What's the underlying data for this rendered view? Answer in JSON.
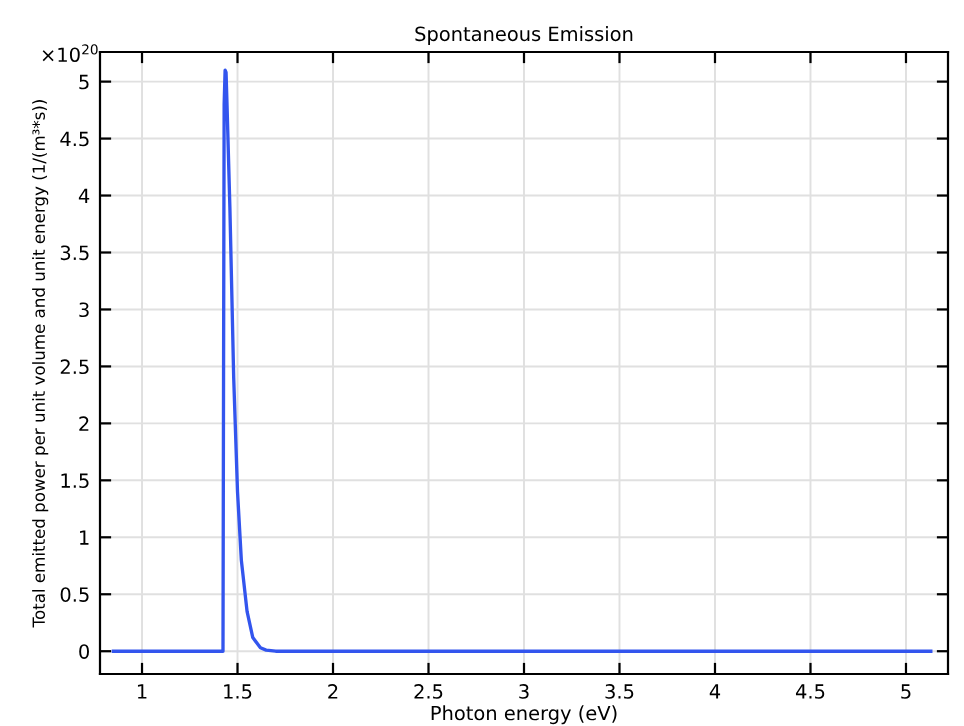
{
  "chart_data": {
    "type": "line",
    "title": "Spontaneous Emission",
    "xlabel": "Photon energy (eV)",
    "ylabel": "Total emitted power per unit volume and unit energy (1/(m³*s))",
    "annotations": [
      "×10$^{20}$"
    ],
    "series": [
      {
        "color": "#3355ee",
        "x": [
          0.85,
          1.424,
          1.427,
          1.43,
          1.435,
          1.44,
          1.445,
          1.46,
          1.48,
          1.5,
          1.52,
          1.55,
          1.58,
          1.62,
          1.65,
          1.7,
          5.13
        ],
        "values": [
          0,
          0,
          2.5,
          4.8,
          5.1,
          5.08,
          4.8,
          3.9,
          2.4,
          1.4,
          0.8,
          0.35,
          0.12,
          0.03,
          0.01,
          0,
          0
        ]
      }
    ],
    "xlim": [
      0.78,
      5.22
    ],
    "ylim": [
      -0.2,
      5.26
    ],
    "xticks": [
      1,
      1.5,
      2,
      2.5,
      3,
      3.5,
      4,
      4.5,
      5
    ],
    "yticks": [
      0,
      0.5,
      1,
      1.5,
      2,
      2.5,
      3,
      3.5,
      4,
      4.5,
      5
    ],
    "grid": true,
    "legend": false,
    "line_style": "solid",
    "marker": "none"
  }
}
